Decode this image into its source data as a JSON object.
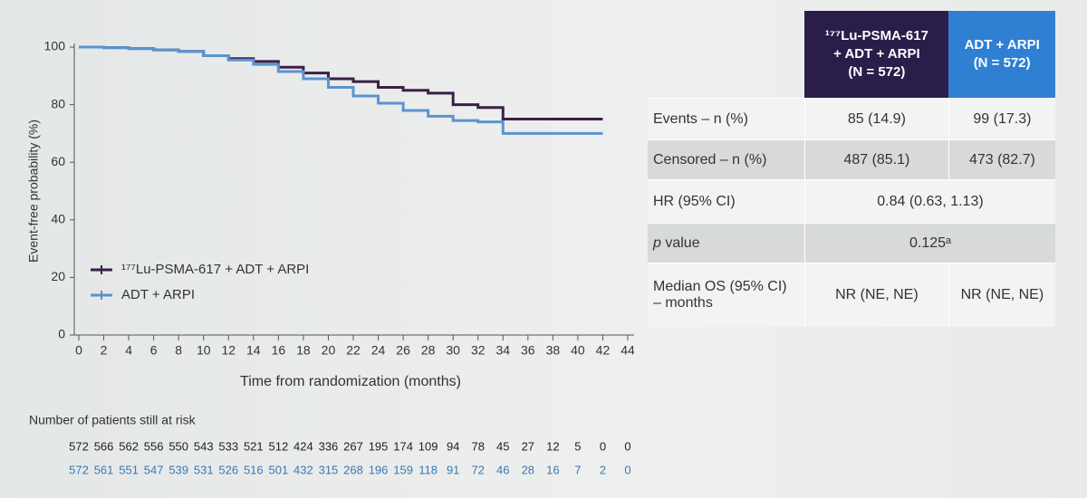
{
  "chart_data": {
    "type": "step",
    "ylabel": "Event-free probability (%)",
    "xlabel": "Time from randomization (months)",
    "xlim": [
      0,
      44
    ],
    "xticks": [
      0,
      2,
      4,
      6,
      8,
      10,
      12,
      14,
      16,
      18,
      20,
      22,
      24,
      26,
      28,
      30,
      32,
      34,
      36,
      38,
      40,
      42,
      44
    ],
    "ylim": [
      0,
      100
    ],
    "yticks": [
      0,
      20,
      40,
      60,
      80,
      100
    ],
    "legend": "lower left",
    "at_risk_title": "Number of patients still at risk",
    "series": [
      {
        "name": "¹⁷⁷Lu-PSMA-617 + ADT + ARPI",
        "color": "#3b1f47",
        "x": [
          0,
          2,
          4,
          6,
          8,
          10,
          12,
          14,
          16,
          18,
          20,
          22,
          24,
          26,
          28,
          30,
          32,
          34,
          36,
          38,
          40,
          42
        ],
        "values": [
          100,
          99.8,
          99.5,
          99,
          98.5,
          97,
          96,
          95,
          93,
          91,
          89,
          88,
          86,
          85,
          84,
          80,
          79,
          75,
          75,
          75,
          75,
          75
        ],
        "at_risk": [
          572,
          566,
          562,
          556,
          550,
          543,
          533,
          521,
          512,
          424,
          336,
          267,
          195,
          174,
          109,
          94,
          78,
          45,
          27,
          12,
          5,
          0,
          0
        ]
      },
      {
        "name": "ADT + ARPI",
        "color": "#5b93cf",
        "x": [
          0,
          2,
          4,
          6,
          8,
          10,
          12,
          14,
          16,
          18,
          20,
          22,
          24,
          26,
          28,
          30,
          32,
          34,
          36,
          38,
          40,
          42
        ],
        "values": [
          100,
          99.8,
          99.5,
          99,
          98.5,
          97,
          95.5,
          94,
          91.5,
          89,
          86,
          83,
          80.5,
          78,
          76,
          74.5,
          74,
          70,
          70,
          70,
          70,
          70
        ],
        "at_risk": [
          572,
          561,
          551,
          547,
          539,
          531,
          526,
          516,
          501,
          432,
          315,
          268,
          196,
          159,
          118,
          91,
          72,
          46,
          28,
          16,
          7,
          2,
          0
        ]
      }
    ]
  },
  "table": {
    "header": [
      [
        "¹⁷⁷Lu-PSMA-617",
        "+ ADT + ARPI",
        "(N = 572)"
      ],
      [
        "ADT + ARPI",
        "(N = 572)"
      ]
    ],
    "rows": [
      [
        "Events – n (%)",
        "85 (14.9)",
        "99 (17.3)"
      ],
      [
        "Censored – n (%)",
        "487 (85.1)",
        "473 (82.7)"
      ],
      [
        "HR (95% CI)",
        "0.84 (0.63, 1.13)"
      ],
      [
        "p value",
        "0.125ᵃ"
      ],
      [
        [
          "Median OS (95% CI)",
          "– months"
        ],
        "NR (NE, NE)",
        "NR (NE, NE)"
      ]
    ]
  }
}
